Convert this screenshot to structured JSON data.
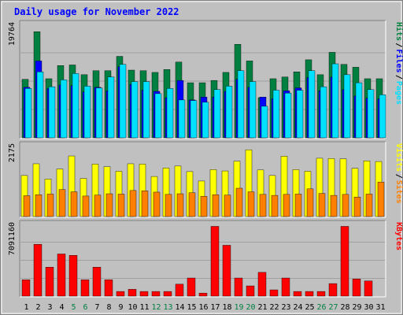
{
  "chart_data": {
    "type": "bar",
    "title": "Daily usage for November 2022",
    "categories": [
      "1",
      "2",
      "3",
      "4",
      "5",
      "6",
      "7",
      "8",
      "9",
      "10",
      "11",
      "12",
      "13",
      "14",
      "15",
      "16",
      "17",
      "18",
      "19",
      "20",
      "21",
      "22",
      "23",
      "24",
      "25",
      "26",
      "27",
      "28",
      "29",
      "30",
      "31"
    ],
    "weekend_days": [
      "5",
      "6",
      "12",
      "13",
      "19",
      "20",
      "26",
      "27"
    ],
    "panels": [
      {
        "id": "hits",
        "max_label": "19764",
        "ylim": [
          0,
          19764
        ],
        "side_labels": [
          "Pages",
          "Files",
          "Hits"
        ],
        "series": [
          {
            "name": "Hits",
            "color": "#008040",
            "values": [
              10200,
              18500,
              10300,
              12600,
              12700,
              11000,
              11700,
              11700,
              14200,
              11800,
              11700,
              11400,
              11900,
              13200,
              9600,
              9600,
              10000,
              11400,
              16300,
              13400,
              7000,
              10300,
              10600,
              11500,
              13600,
              11000,
              14900,
              12800,
              12300,
              10300,
              10300
            ]
          },
          {
            "name": "Files",
            "color": "#0000ff",
            "values": [
              8800,
              13400,
              8600,
              9200,
              9100,
              8000,
              8800,
              8200,
              12400,
              9300,
              8300,
              8100,
              7000,
              10000,
              6600,
              7100,
              7100,
              8100,
              10200,
              8800,
              7100,
              6800,
              8200,
              8700,
              10500,
              8200,
              10600,
              8400,
              7300,
              6900,
              6800
            ]
          },
          {
            "name": "Pages",
            "color": "#00e0ff",
            "values": [
              8600,
              11500,
              8900,
              10100,
              11200,
              9000,
              8700,
              10600,
              12800,
              9800,
              9800,
              7700,
              8600,
              6600,
              6500,
              6200,
              8400,
              9000,
              11700,
              9800,
              5500,
              8300,
              7800,
              8300,
              11700,
              8900,
              12900,
              11000,
              9600,
              8400,
              7500
            ]
          }
        ]
      },
      {
        "id": "visits",
        "max_label": "2175",
        "ylim": [
          0,
          2175
        ],
        "side_labels": [
          "Sites",
          "Visits"
        ],
        "series": [
          {
            "name": "Visits",
            "color": "#ffff00",
            "values": [
              1260,
              1620,
              1150,
              1460,
              1860,
              1170,
              1610,
              1530,
              1390,
              1620,
              1610,
              1230,
              1490,
              1550,
              1380,
              1090,
              1440,
              1400,
              1700,
              2050,
              1430,
              1260,
              1850,
              1440,
              1390,
              1790,
              1780,
              1770,
              1480,
              1710,
              1690
            ]
          },
          {
            "name": "Sites",
            "color": "#ff8000",
            "values": [
              640,
              670,
              690,
              830,
              760,
              630,
              660,
              700,
              690,
              800,
              790,
              750,
              680,
              700,
              730,
              620,
              670,
              660,
              870,
              760,
              680,
              650,
              680,
              690,
              850,
              710,
              650,
              680,
              600,
              690,
              1060
            ]
          }
        ]
      },
      {
        "id": "kbytes",
        "max_label": "7091160",
        "ylim": [
          0,
          7091160
        ],
        "side_labels": [
          "KBytes"
        ],
        "series": [
          {
            "name": "KBytes",
            "color": "#ff0000",
            "values": [
              1620000,
              5130000,
              2860000,
              4170000,
              4030000,
              1620000,
              2860000,
              1620000,
              460000,
              670000,
              460000,
              460000,
              460000,
              1180000,
              1790000,
              300000,
              6900000,
              5030000,
              1790000,
              1010000,
              2350000,
              620000,
              1790000,
              460000,
              460000,
              460000,
              1240000,
              6900000,
              1690000,
              1500000,
              0
            ]
          }
        ]
      }
    ]
  },
  "colors": {
    "background": "#c0c0c0",
    "plot": "#c0c0c0",
    "title": "#0000ff",
    "day_label": "#000000",
    "weekend_label": "#008040"
  }
}
